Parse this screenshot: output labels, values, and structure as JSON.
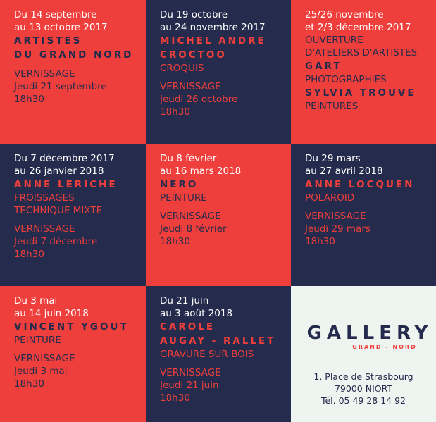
{
  "cells": [
    {
      "dates": [
        "Du 14 septembre",
        "au 13 octobre 2017"
      ],
      "artist": [
        "ARTISTES",
        "DU GRAND NORD"
      ],
      "vernissage": "VERNISSAGE",
      "opening_date": "Jeudi 21 septembre",
      "time": "18h30"
    },
    {
      "dates": [
        "Du 19 octobre",
        "au 24 novembre 2017"
      ],
      "artist": [
        "MICHEL ANDRE",
        "CROCTOO"
      ],
      "info": [
        "CROQUIS"
      ],
      "vernissage": "VERNISSAGE",
      "opening_date": "Jeudi 26 octobre",
      "time": "18h30"
    },
    {
      "dates": [
        "25/26 novembre",
        "et 2/3 décembre 2017"
      ],
      "title": [
        "OUVERTURE",
        "D'ATELIERS D'ARTISTES"
      ],
      "exhibitions": [
        {
          "artist": "GART",
          "info": "PHOTOGRAPHIES"
        },
        {
          "artist": "SYLVIA TROUVE",
          "info": "PEINTURES"
        }
      ]
    },
    {
      "dates": [
        "Du 7 décembre 2017",
        "au 26 janvier 2018"
      ],
      "artist": [
        "ANNE LERICHE"
      ],
      "info": [
        "FROISSAGES",
        "TECHNIQUE MIXTE"
      ],
      "vernissage": "VERNISSAGE",
      "opening_date": "Jeudi 7 décembre",
      "time": "18h30"
    },
    {
      "dates": [
        "Du 8 février",
        "au 16 mars 2018"
      ],
      "artist": [
        "NERO"
      ],
      "info": [
        "PEINTURE"
      ],
      "vernissage": "VERNISSAGE",
      "opening_date": "Jeudi 8 février",
      "time": "18h30"
    },
    {
      "dates": [
        "Du 29 mars",
        "au 27 avril 2018"
      ],
      "artist": [
        "ANNE LOCQUEN"
      ],
      "info": [
        "POLAROID"
      ],
      "vernissage": "VERNISSAGE",
      "opening_date": "Jeudi 29 mars",
      "time": "18h30"
    },
    {
      "dates": [
        "Du 3 mai",
        "au 14 juin 2018"
      ],
      "artist": [
        "VINCENT YGOUT"
      ],
      "info": [
        "PEINTURE"
      ],
      "vernissage": "VERNISSAGE",
      "opening_date": "Jeudi 3 mai",
      "time": "18h30"
    },
    {
      "dates": [
        "Du 21 juin",
        "au 3 août 2018"
      ],
      "artist": [
        "CAROLE",
        "AUGAY - RALLET"
      ],
      "info": [
        "GRAVURE SUR BOIS"
      ],
      "vernissage": "VERNISSAGE",
      "opening_date": "Jeudi 21 juin",
      "time": "18h30"
    }
  ],
  "logo": {
    "name": "GALLERY",
    "sub": "GRAND - NORD"
  },
  "address": [
    "1, Place de Strasbourg",
    "79000 NIORT",
    "Tél. 05 49 28 14 92"
  ]
}
